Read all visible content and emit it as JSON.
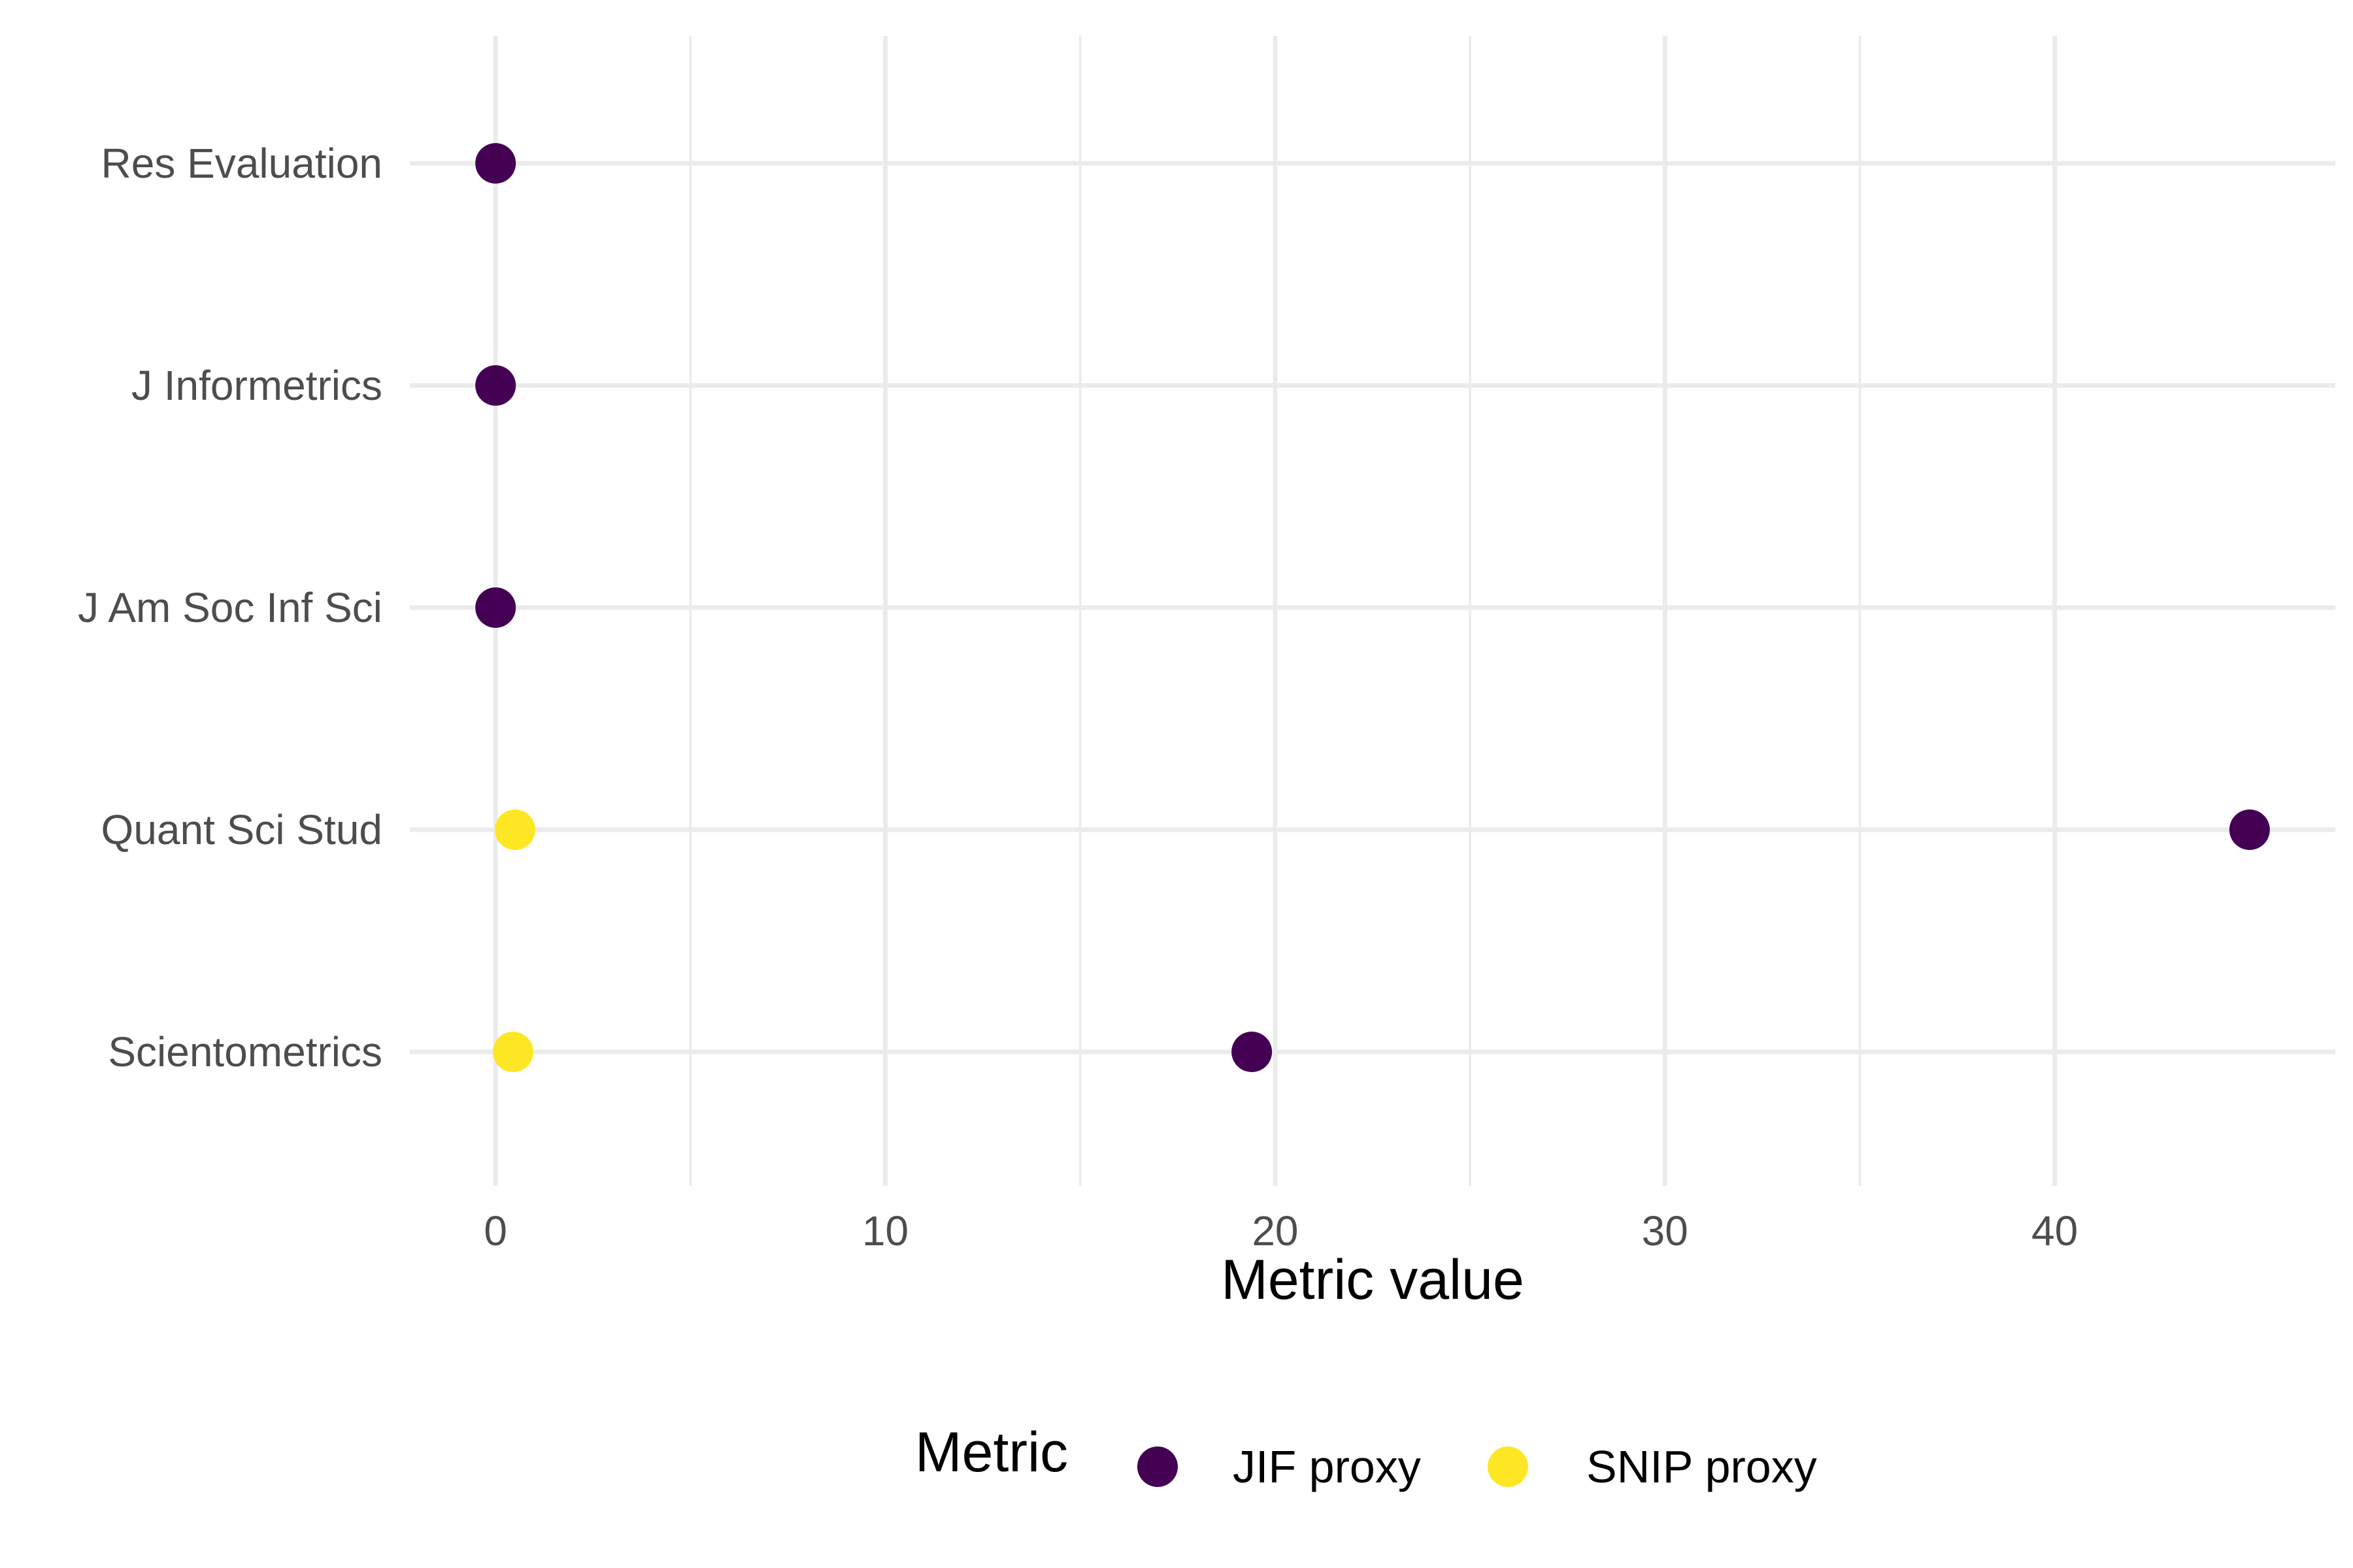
{
  "chart_data": {
    "type": "scatter",
    "xlabel": "Metric value",
    "ylabel": "",
    "xlim": [
      -2.2,
      47.2
    ],
    "x_ticks": [
      0,
      10,
      20,
      30,
      40
    ],
    "x_tick_labels": [
      "0",
      "10",
      "20",
      "30",
      "40"
    ],
    "categories": [
      "Res Evaluation",
      "J Informetrics",
      "J Am Soc Inf Sci",
      "Quant Sci Stud",
      "Scientometrics"
    ],
    "grid": true,
    "legend_position": "bottom",
    "legend_title": "Metric",
    "series": [
      {
        "name": "JIF proxy",
        "color": "#440154",
        "points": [
          {
            "category": "Res Evaluation",
            "x": 0.0
          },
          {
            "category": "J Informetrics",
            "x": 0.0
          },
          {
            "category": "J Am Soc Inf Sci",
            "x": 0.0
          },
          {
            "category": "Quant Sci Stud",
            "x": 45.0
          },
          {
            "category": "Scientometrics",
            "x": 19.4
          }
        ]
      },
      {
        "name": "SNIP proxy",
        "color": "#FDE725",
        "points": [
          {
            "category": "Quant Sci Stud",
            "x": 0.5
          },
          {
            "category": "Scientometrics",
            "x": 0.45
          }
        ]
      }
    ]
  }
}
